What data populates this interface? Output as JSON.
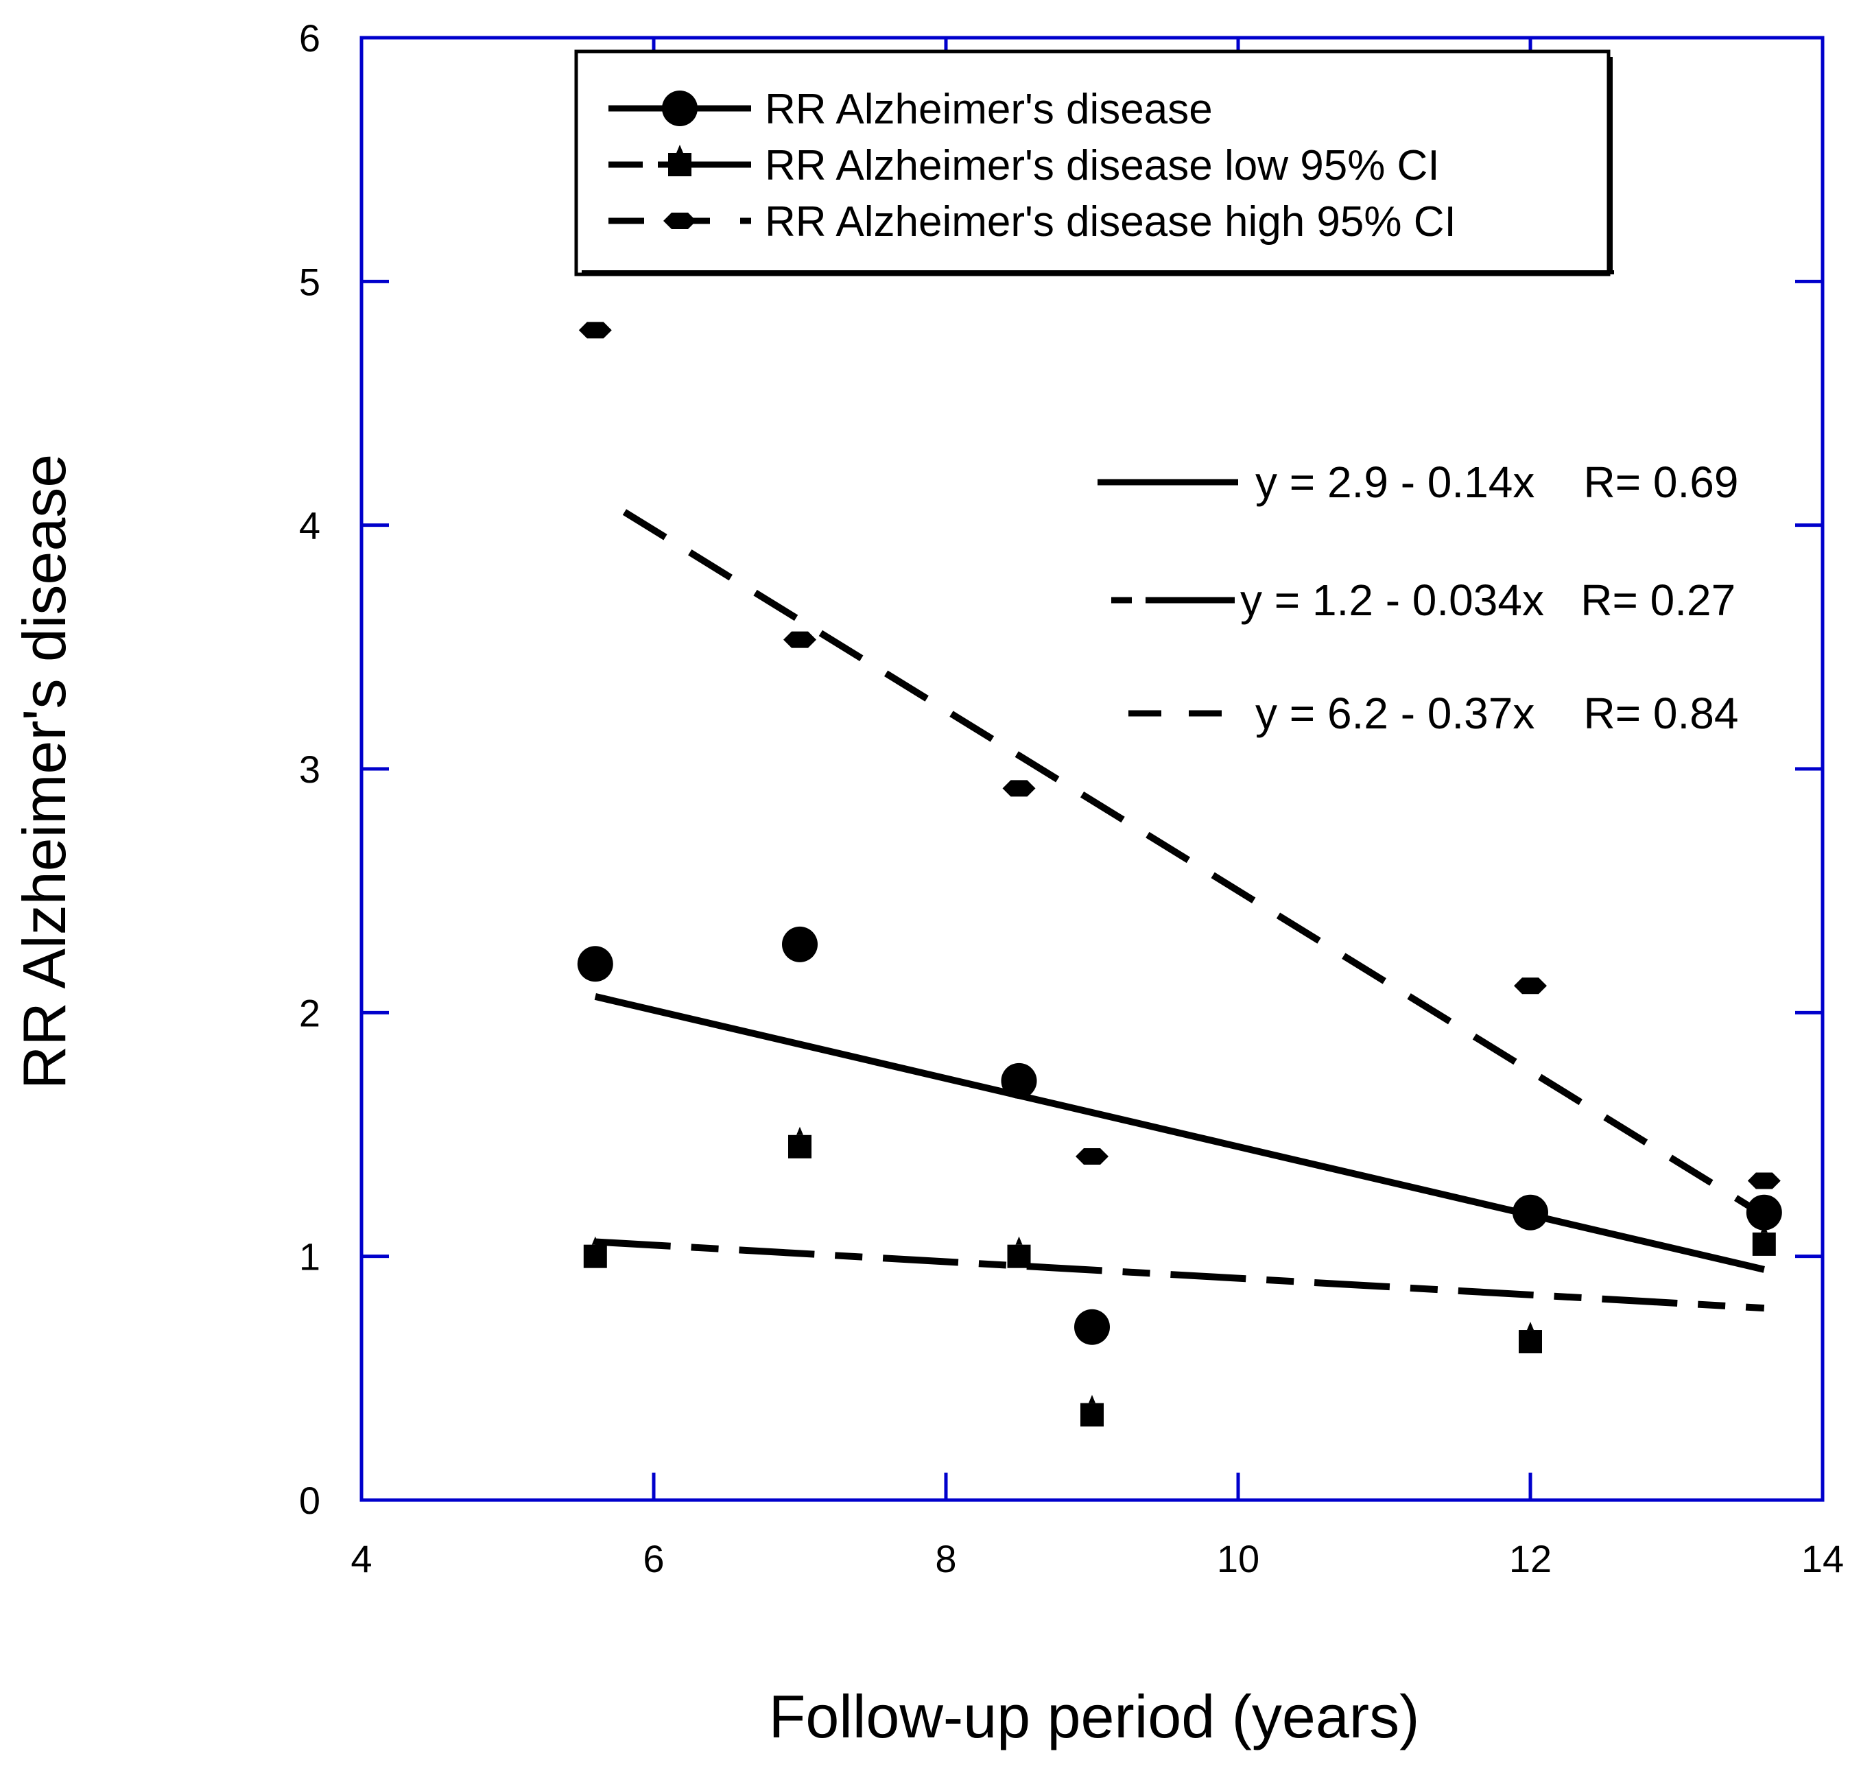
{
  "chart_data": {
    "type": "scatter",
    "title": "",
    "xlabel": "Follow-up period (years)",
    "ylabel": "RR Alzheimer's disease",
    "xlim": [
      4,
      14
    ],
    "ylim": [
      0,
      6
    ],
    "xticks": [
      4,
      6,
      8,
      10,
      12,
      14
    ],
    "yticks": [
      0,
      1,
      2,
      3,
      4,
      5,
      6
    ],
    "grid": false,
    "legend_position": "top-center",
    "frame_color": "#0000cc",
    "series": [
      {
        "name": "RR Alzheimer's disease",
        "marker": "circle",
        "points": [
          {
            "x": 5.6,
            "y": 2.2
          },
          {
            "x": 7.0,
            "y": 2.28
          },
          {
            "x": 8.5,
            "y": 1.72
          },
          {
            "x": 9.0,
            "y": 0.71
          },
          {
            "x": 12.0,
            "y": 1.18
          },
          {
            "x": 13.6,
            "y": 1.18
          }
        ]
      },
      {
        "name": "RR Alzheimer's disease low 95% CI",
        "marker": "square",
        "points": [
          {
            "x": 5.6,
            "y": 1.0
          },
          {
            "x": 7.0,
            "y": 1.45
          },
          {
            "x": 8.5,
            "y": 1.0
          },
          {
            "x": 9.0,
            "y": 0.35
          },
          {
            "x": 12.0,
            "y": 0.65
          },
          {
            "x": 13.6,
            "y": 1.05
          }
        ]
      },
      {
        "name": "RR Alzheimer's disease high 95% CI",
        "marker": "hexagon",
        "points": [
          {
            "x": 5.6,
            "y": 4.8
          },
          {
            "x": 7.0,
            "y": 3.53
          },
          {
            "x": 8.5,
            "y": 2.92
          },
          {
            "x": 9.0,
            "y": 1.41
          },
          {
            "x": 12.0,
            "y": 2.11
          },
          {
            "x": 13.6,
            "y": 1.31
          }
        ]
      }
    ],
    "fits": [
      {
        "label": "y = 2.9 - 0.14x    R= 0.69",
        "intercept": 2.85,
        "slope": -0.14,
        "x_range": [
          5.6,
          13.6
        ],
        "dash": "solid"
      },
      {
        "label": "y = 1.2 - 0.034x   R= 0.27",
        "intercept": 1.25,
        "slope": -0.034,
        "x_range": [
          5.6,
          13.6
        ],
        "dash": "long-short"
      },
      {
        "label": "y = 6.2 - 0.37x    R= 0.84",
        "intercept": 6.2,
        "slope": -0.37,
        "x_range": [
          5.8,
          13.6
        ],
        "dash": "dashed"
      }
    ]
  }
}
